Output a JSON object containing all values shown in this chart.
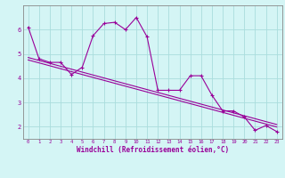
{
  "title": "",
  "xlabel": "Windchill (Refroidissement éolien,°C)",
  "x": [
    0,
    1,
    2,
    3,
    4,
    5,
    6,
    7,
    8,
    9,
    10,
    11,
    12,
    13,
    14,
    15,
    16,
    17,
    18,
    19,
    20,
    21,
    22,
    23
  ],
  "y_main": [
    6.1,
    4.8,
    4.65,
    4.65,
    4.15,
    4.45,
    5.75,
    6.25,
    6.3,
    6.0,
    6.5,
    5.7,
    3.5,
    3.5,
    3.5,
    4.1,
    4.1,
    3.3,
    2.65,
    2.65,
    2.4,
    1.85,
    2.05,
    1.8
  ],
  "y_trend1": [
    4.75,
    4.63,
    4.51,
    4.39,
    4.27,
    4.15,
    4.03,
    3.91,
    3.79,
    3.67,
    3.55,
    3.43,
    3.31,
    3.19,
    3.07,
    2.95,
    2.83,
    2.71,
    2.59,
    2.47,
    2.35,
    2.23,
    2.11,
    1.99
  ],
  "y_trend2": [
    4.85,
    4.73,
    4.61,
    4.49,
    4.37,
    4.25,
    4.13,
    4.01,
    3.89,
    3.77,
    3.65,
    3.53,
    3.41,
    3.29,
    3.17,
    3.05,
    2.93,
    2.81,
    2.69,
    2.57,
    2.45,
    2.33,
    2.21,
    2.09
  ],
  "line_color": "#990099",
  "bg_color": "#d4f5f5",
  "grid_color": "#aadddd",
  "ylim": [
    1.5,
    7.0
  ],
  "xlim": [
    -0.5,
    23.5
  ],
  "yticks": [
    2,
    3,
    4,
    5,
    6
  ],
  "xticks": [
    0,
    1,
    2,
    3,
    4,
    5,
    6,
    7,
    8,
    9,
    10,
    11,
    12,
    13,
    14,
    15,
    16,
    17,
    18,
    19,
    20,
    21,
    22,
    23
  ]
}
